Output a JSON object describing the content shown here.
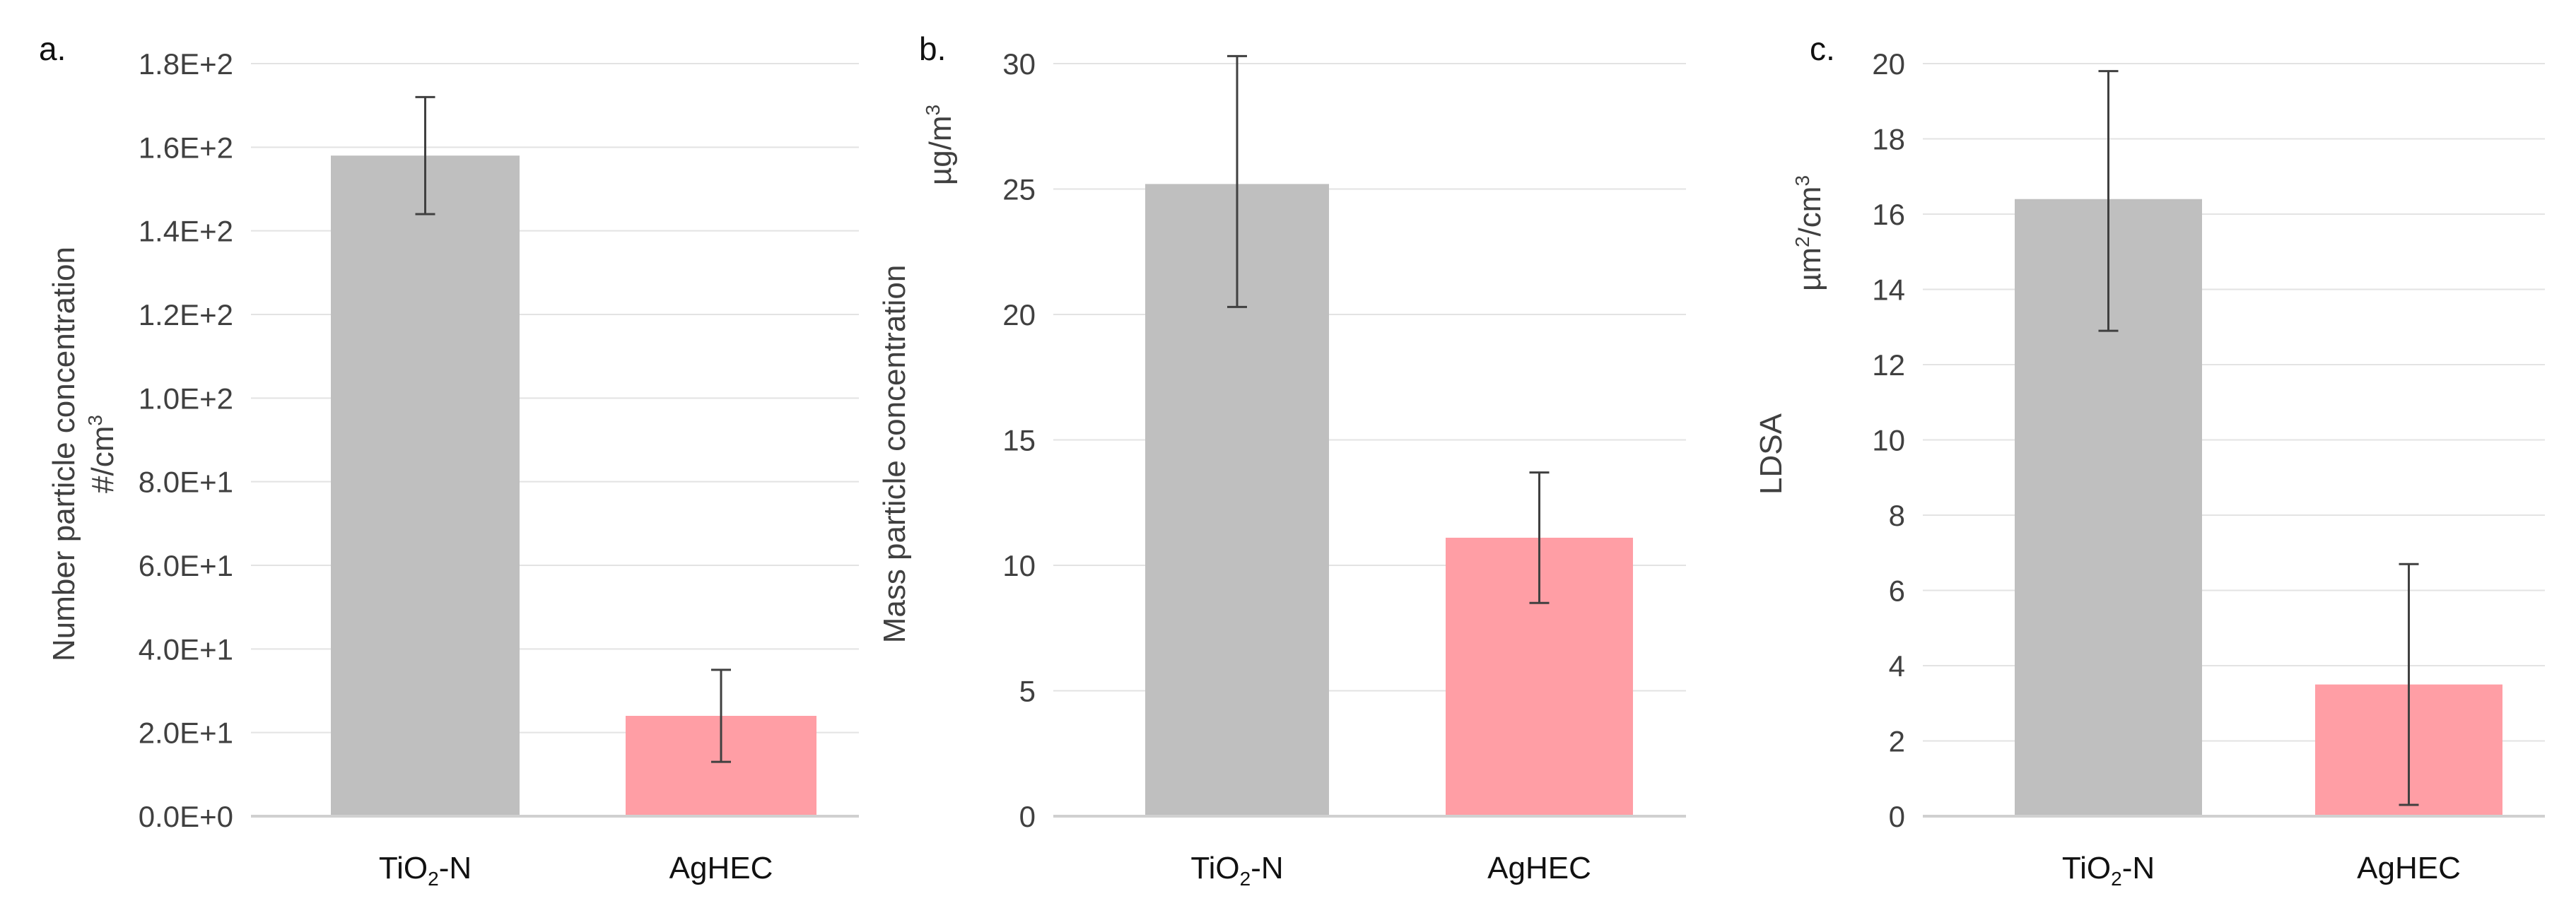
{
  "chart_data": [
    {
      "panel_label": "a.",
      "type": "bar",
      "categories": [
        "TiO2-N",
        "AgHEC"
      ],
      "category_display": [
        {
          "pre": "TiO",
          "sub": "2",
          "post": "-N"
        },
        {
          "pre": "AgHEC",
          "sub": "",
          "post": ""
        }
      ],
      "values": [
        158,
        24
      ],
      "error": [
        {
          "low": 144,
          "high": 172
        },
        {
          "low": 13,
          "high": 35
        }
      ],
      "ylabel": "Number particle concentration",
      "yunit": {
        "pre": "#/cm",
        "sup": "3"
      },
      "ylim": [
        0,
        180
      ],
      "yticks": [
        0,
        20,
        40,
        60,
        80,
        100,
        120,
        140,
        160,
        180
      ],
      "ytick_labels": [
        "0.0E+0",
        "2.0E+1",
        "4.0E+1",
        "6.0E+1",
        "8.0E+1",
        "1.0E+2",
        "1.2E+2",
        "1.4E+2",
        "1.6E+2",
        "1.8E+2"
      ],
      "bar_colors": [
        "#bfbfbf",
        "#ff9ea5"
      ],
      "grid": true
    },
    {
      "panel_label": "b.",
      "type": "bar",
      "categories": [
        "TiO2-N",
        "AgHEC"
      ],
      "category_display": [
        {
          "pre": "TiO",
          "sub": "2",
          "post": "-N"
        },
        {
          "pre": "AgHEC",
          "sub": "",
          "post": ""
        }
      ],
      "values": [
        25.2,
        11.1
      ],
      "error": [
        {
          "low": 20.3,
          "high": 30.3
        },
        {
          "low": 8.5,
          "high": 13.7
        }
      ],
      "ylabel": "Mass particle concentration",
      "yunit": {
        "pre": "µg/m",
        "sup": "3"
      },
      "ylim": [
        0,
        30
      ],
      "yticks": [
        0,
        5,
        10,
        15,
        20,
        25,
        30
      ],
      "ytick_labels": [
        "0",
        "5",
        "10",
        "15",
        "20",
        "25",
        "30"
      ],
      "bar_colors": [
        "#bfbfbf",
        "#ff9ea5"
      ],
      "grid": true
    },
    {
      "panel_label": "c.",
      "type": "bar",
      "categories": [
        "TiO2-N",
        "AgHEC"
      ],
      "category_display": [
        {
          "pre": "TiO",
          "sub": "2",
          "post": "-N"
        },
        {
          "pre": "AgHEC",
          "sub": "",
          "post": ""
        }
      ],
      "values": [
        16.4,
        3.5
      ],
      "error": [
        {
          "low": 12.9,
          "high": 19.8
        },
        {
          "low": 0.3,
          "high": 6.7
        }
      ],
      "ylabel": "LDSA",
      "yunit": {
        "pre": "µm",
        "sup": "2",
        "mid": "/cm",
        "sup2": "3"
      },
      "ylim": [
        0,
        20
      ],
      "yticks": [
        0,
        2,
        4,
        6,
        8,
        10,
        12,
        14,
        16,
        18,
        20
      ],
      "ytick_labels": [
        "0",
        "2",
        "4",
        "6",
        "8",
        "10",
        "12",
        "14",
        "16",
        "18",
        "20"
      ],
      "bar_colors": [
        "#bfbfbf",
        "#ff9ea5"
      ],
      "grid": true
    }
  ]
}
